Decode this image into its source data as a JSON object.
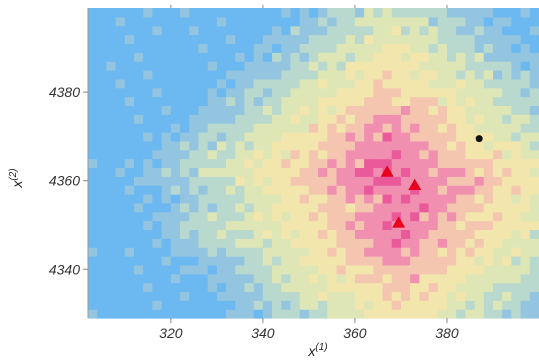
{
  "chart_data": {
    "type": "heatmap",
    "xlabel": "x",
    "xlabel_sup": "(1)",
    "ylabel": "x",
    "ylabel_sup": "(2)",
    "xlim": [
      302,
      400
    ],
    "ylim": [
      4329,
      4399
    ],
    "x_ticks": [
      320,
      340,
      360,
      380
    ],
    "y_ticks": [
      4340,
      4360,
      4380
    ],
    "x_tick_labels": [
      "320",
      "340",
      "360",
      "380"
    ],
    "y_tick_labels": [
      "4340",
      "4360",
      "4380"
    ],
    "grid": false,
    "surface": {
      "description": "pixelated field peaking near three triangle points, diamond-shaped contours",
      "cell_size": 2,
      "colormap": [
        "#6cb8f0",
        "#93c5e0",
        "#b9d9cf",
        "#dfe6b6",
        "#f2e6ad",
        "#f4c6b0",
        "#f08fb0",
        "#ea5a9a"
      ],
      "max_level": 7
    },
    "series": [
      {
        "marker": "triangle",
        "color": "#e8001c",
        "points": [
          {
            "x": 367,
            "y": 4362
          },
          {
            "x": 373,
            "y": 4359
          },
          {
            "x": 369.5,
            "y": 4350.5
          }
        ]
      },
      {
        "marker": "circle",
        "color": "#111111",
        "points": [
          {
            "x": 387,
            "y": 4369.5
          }
        ]
      }
    ]
  }
}
